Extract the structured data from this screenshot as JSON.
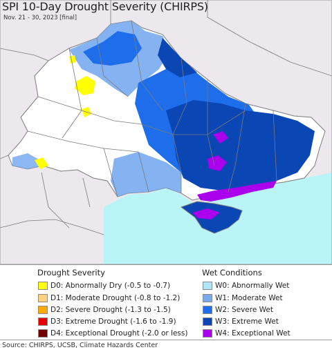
{
  "header": {
    "title": "SPI 10-Day Drought Severity (CHIRPS)",
    "subtitle": "Nov. 21 - 30, 2023 [final]"
  },
  "legend": {
    "drought_heading": "Drought Severity",
    "wet_heading": "Wet Conditions",
    "drought_items": [
      {
        "label": "D0: Abnormally Dry (-0.5 to -0.7)",
        "color": "#ffff00"
      },
      {
        "label": "D1: Moderate Drought (-0.8 to -1.2)",
        "color": "#fcd37f"
      },
      {
        "label": "D2: Severe Drought (-1.3 to -1.5)",
        "color": "#ffaa00"
      },
      {
        "label": "D3: Extreme Drought (-1.6 to -1.9)",
        "color": "#e60000"
      },
      {
        "label": "D4: Exceptional Drought (-2.0 or less)",
        "color": "#730000"
      }
    ],
    "wet_items": [
      {
        "label": "W0: Abnormally Wet",
        "color": "#aee6fa"
      },
      {
        "label": "W1: Moderate Wet",
        "color": "#78aaf0"
      },
      {
        "label": "W2: Severe Wet",
        "color": "#1e6eeb"
      },
      {
        "label": "W3: Extreme Wet",
        "color": "#0a46b4"
      },
      {
        "label": "W4: Exceptional Wet",
        "color": "#aa00ee"
      }
    ]
  },
  "footer": {
    "source": "Source: CHIRPS, UCSB, Climate Hazards Center"
  },
  "map_colors": {
    "outside": "#ede8ee",
    "sea": "#b9f4f6",
    "normal": "#ffffff",
    "borders": "#7a7a7a"
  }
}
